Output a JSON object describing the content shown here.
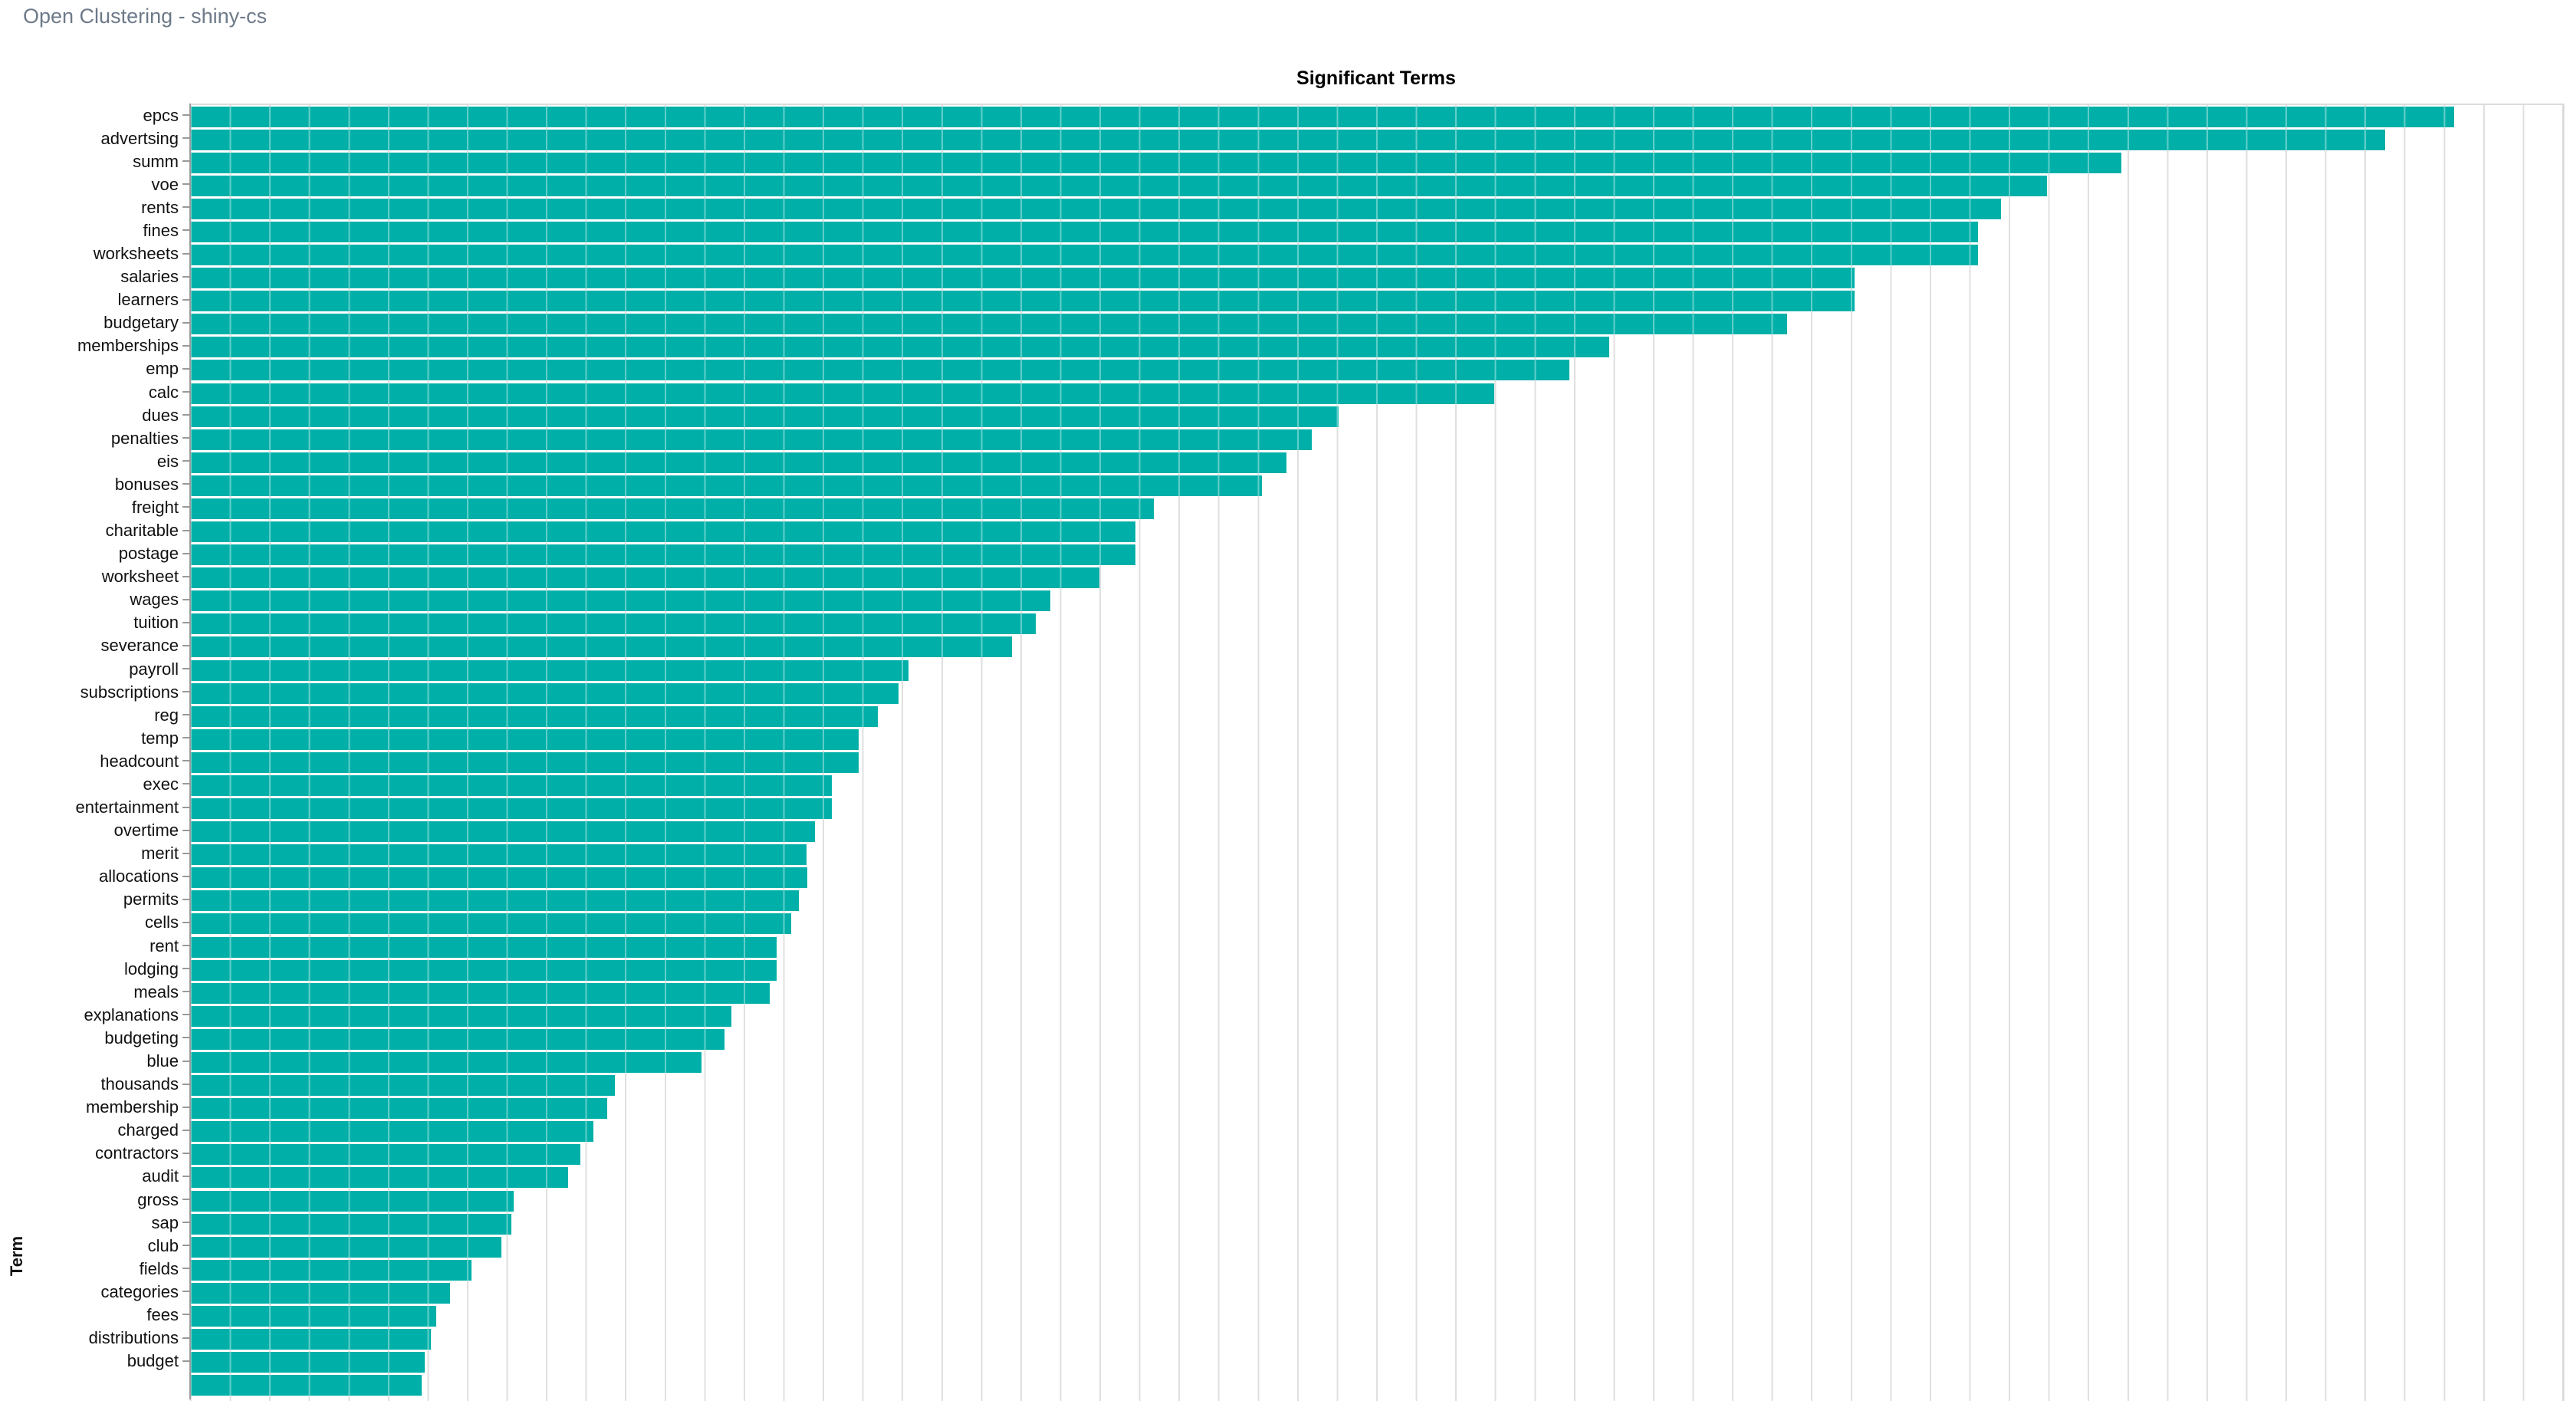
{
  "header": {
    "title": "Open Clustering - shiny-cs"
  },
  "chart_data": {
    "type": "bar",
    "orientation": "horizontal",
    "title": "Significant Terms",
    "xlabel": "",
    "ylabel": "Term",
    "bar_color": "#00b0a8",
    "gridline_color": "#e0e0e0",
    "axis_line_color": "#999999",
    "legend": "none",
    "x_axis": {
      "tick_labels_visible": false,
      "gridlines_visible": true,
      "gridline_intervals_across_axis": 60,
      "value_units": "fraction of visible x-axis width (no numeric scale shown in screenshot)"
    },
    "categories": [
      "epcs",
      "advertsing",
      "summ",
      "voe",
      "rents",
      "fines",
      "worksheets",
      "salaries",
      "learners",
      "budgetary",
      "memberships",
      "emp",
      "calc",
      "dues",
      "penalties",
      "eis",
      "bonuses",
      "freight",
      "charitable",
      "postage",
      "worksheet",
      "wages",
      "tuition",
      "severance",
      "payroll",
      "subscriptions",
      "reg",
      "temp",
      "headcount",
      "exec",
      "entertainment",
      "overtime",
      "merit",
      "allocations",
      "permits",
      "cells",
      "rent",
      "lodging",
      "meals",
      "explanations",
      "budgeting",
      "blue",
      "thousands",
      "membership",
      "charged",
      "contractors",
      "audit",
      "gross",
      "sap",
      "club",
      "fields",
      "categories",
      "fees",
      "distributions",
      "budget"
    ],
    "values": [
      0.9544,
      0.9253,
      0.8142,
      0.7828,
      0.7634,
      0.7537,
      0.7537,
      0.7017,
      0.7017,
      0.6732,
      0.5983,
      0.5815,
      0.5498,
      0.4842,
      0.4729,
      0.4622,
      0.4518,
      0.4063,
      0.3985,
      0.3985,
      0.3833,
      0.3626,
      0.3565,
      0.3465,
      0.3028,
      0.2986,
      0.2899,
      0.2818,
      0.2818,
      0.2705,
      0.2705,
      0.2634,
      0.2599,
      0.2602,
      0.2566,
      0.2534,
      0.2473,
      0.2473,
      0.2443,
      0.2282,
      0.2253,
      0.2156,
      0.1791,
      0.1758,
      0.17,
      0.1645,
      0.1593,
      0.1364,
      0.1354,
      0.1312,
      0.1186,
      0.1096,
      0.1037,
      0.1015,
      0.0989
    ],
    "partial_bottom_row": {
      "label": "",
      "value": 0.0976,
      "note": "56th bar clipped by bottom edge of viewport; its label is cut off"
    }
  }
}
